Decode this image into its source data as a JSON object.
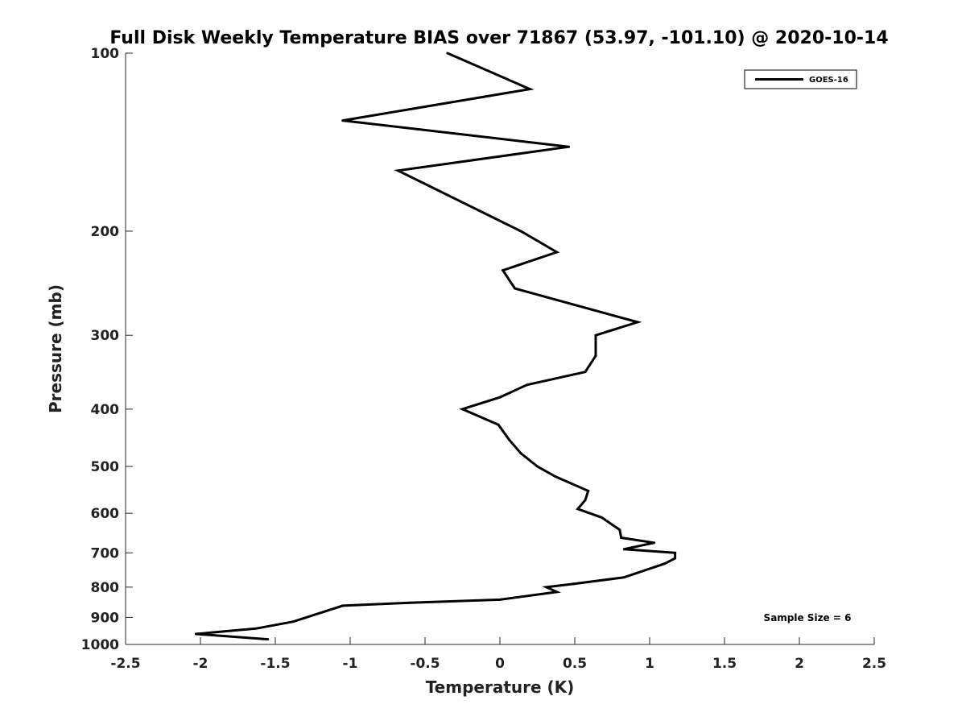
{
  "chart_data": {
    "type": "line",
    "title": "Full Disk Weekly Temperature BIAS over 71867 (53.97, -101.10) @ 2020-10-14",
    "xlabel": "Temperature (K)",
    "ylabel": "Pressure (mb)",
    "xlim": [
      -2.5,
      2.5
    ],
    "ylim": [
      100,
      1000
    ],
    "yscale": "log",
    "y_reversed": true,
    "grid": false,
    "legend_position": "top-right",
    "x_ticks": [
      -2.5,
      -2,
      -1.5,
      -1,
      -0.5,
      0,
      0.5,
      1,
      1.5,
      2,
      2.5
    ],
    "x_tick_labels": [
      "-2.5",
      "-2",
      "-1.5",
      "-1",
      "-0.5",
      "0",
      "0.5",
      "1",
      "1.5",
      "2",
      "2.5"
    ],
    "y_ticks": [
      100,
      200,
      300,
      400,
      500,
      600,
      700,
      800,
      900,
      1000
    ],
    "y_tick_labels": [
      "100",
      "200",
      "300",
      "400",
      "500",
      "600",
      "700",
      "800",
      "900",
      "1000"
    ],
    "series": [
      {
        "name": "GOES-16",
        "color": "#000000",
        "points": [
          {
            "x": -0.35,
            "y": 100
          },
          {
            "x": 0.2,
            "y": 115
          },
          {
            "x": -1.05,
            "y": 130
          },
          {
            "x": 0.46,
            "y": 144
          },
          {
            "x": -0.68,
            "y": 158
          },
          {
            "x": 0.14,
            "y": 200
          },
          {
            "x": 0.38,
            "y": 217
          },
          {
            "x": 0.02,
            "y": 233
          },
          {
            "x": 0.1,
            "y": 250
          },
          {
            "x": 0.92,
            "y": 285
          },
          {
            "x": 0.64,
            "y": 300
          },
          {
            "x": 0.64,
            "y": 325
          },
          {
            "x": 0.57,
            "y": 346
          },
          {
            "x": 0.18,
            "y": 364
          },
          {
            "x": 0.0,
            "y": 382
          },
          {
            "x": -0.25,
            "y": 400
          },
          {
            "x": -0.01,
            "y": 425
          },
          {
            "x": 0.06,
            "y": 450
          },
          {
            "x": 0.14,
            "y": 475
          },
          {
            "x": 0.25,
            "y": 500
          },
          {
            "x": 0.37,
            "y": 520
          },
          {
            "x": 0.59,
            "y": 550
          },
          {
            "x": 0.57,
            "y": 570
          },
          {
            "x": 0.52,
            "y": 590
          },
          {
            "x": 0.68,
            "y": 610
          },
          {
            "x": 0.8,
            "y": 640
          },
          {
            "x": 0.81,
            "y": 660
          },
          {
            "x": 1.03,
            "y": 673
          },
          {
            "x": 0.83,
            "y": 690
          },
          {
            "x": 1.17,
            "y": 700
          },
          {
            "x": 1.17,
            "y": 715
          },
          {
            "x": 1.1,
            "y": 730
          },
          {
            "x": 0.83,
            "y": 770
          },
          {
            "x": 0.49,
            "y": 790
          },
          {
            "x": 0.31,
            "y": 800
          },
          {
            "x": 0.38,
            "y": 815
          },
          {
            "x": 0.0,
            "y": 840
          },
          {
            "x": -0.6,
            "y": 850
          },
          {
            "x": -1.05,
            "y": 860
          },
          {
            "x": -1.22,
            "y": 888
          },
          {
            "x": -1.38,
            "y": 915
          },
          {
            "x": -1.63,
            "y": 940
          },
          {
            "x": -2.03,
            "y": 960
          },
          {
            "x": -1.55,
            "y": 980
          }
        ]
      }
    ],
    "legend": [
      "GOES-16"
    ],
    "annotations": [
      "Sample Size = 6"
    ]
  }
}
